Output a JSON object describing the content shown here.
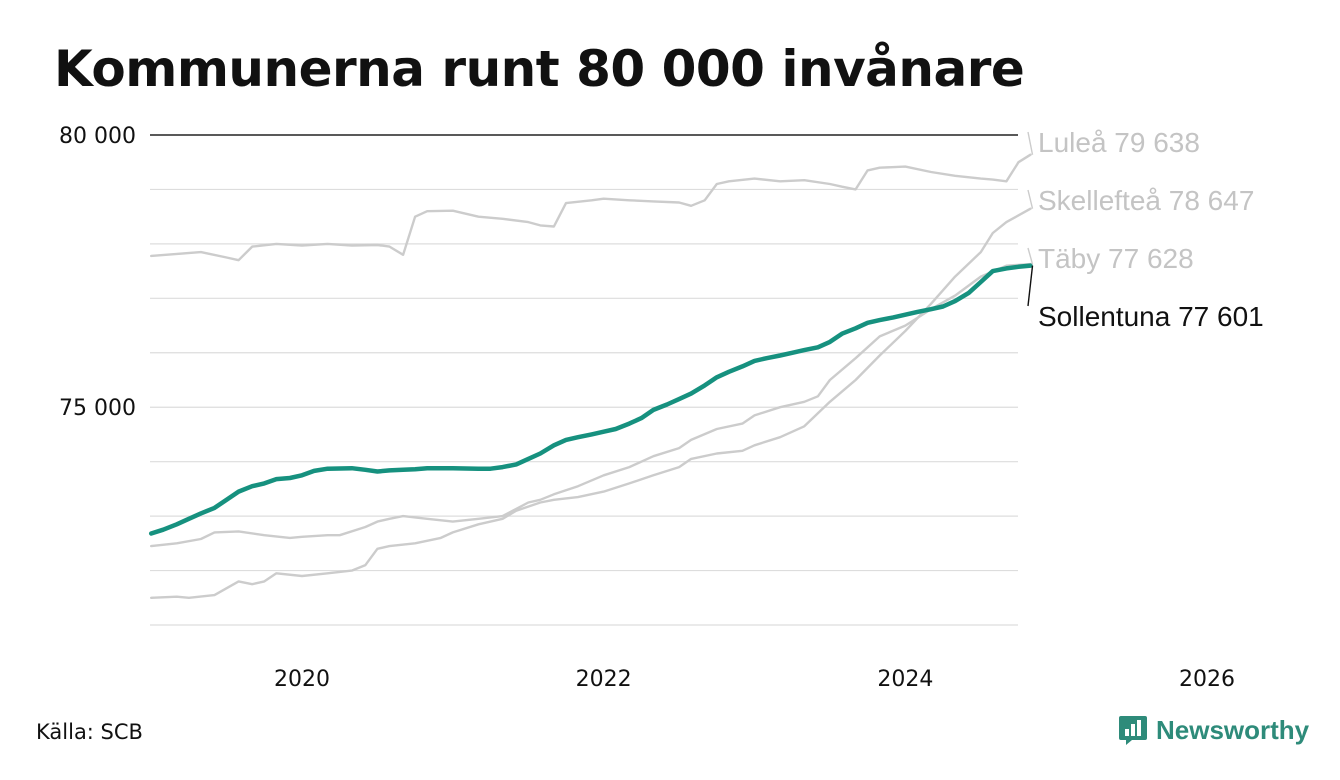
{
  "title": "Kommunerna runt 80 000 invånare",
  "source": "Källa: SCB",
  "brand": "Newsworthy",
  "colors": {
    "highlight": "#16917f",
    "muted": "#cccccc",
    "muted_label": "#c4c4c4",
    "brand": "#2e8b7a"
  },
  "chart_data": {
    "type": "line",
    "title": "Kommunerna runt 80 000 invånare",
    "y_tick_labels": [
      "80 000",
      "75 000"
    ],
    "x_tick_labels": [
      "2020",
      "2022",
      "2024",
      "2026"
    ],
    "ylim": [
      71000,
      80000
    ],
    "xlim": [
      2019.0,
      2026.0
    ],
    "grid": true,
    "series": [
      {
        "name": "Luleå",
        "label": "Luleå 79 638",
        "highlight": false,
        "points": [
          [
            2019.0,
            77780
          ],
          [
            2019.33,
            77850
          ],
          [
            2019.5,
            77750
          ],
          [
            2019.58,
            77700
          ],
          [
            2019.67,
            77950
          ],
          [
            2019.83,
            78000
          ],
          [
            2020.0,
            77970
          ],
          [
            2020.17,
            78000
          ],
          [
            2020.33,
            77970
          ],
          [
            2020.5,
            77980
          ],
          [
            2020.58,
            77950
          ],
          [
            2020.67,
            77800
          ],
          [
            2020.75,
            78500
          ],
          [
            2020.83,
            78600
          ],
          [
            2021.0,
            78610
          ],
          [
            2021.17,
            78500
          ],
          [
            2021.33,
            78460
          ],
          [
            2021.5,
            78400
          ],
          [
            2021.58,
            78340
          ],
          [
            2021.67,
            78320
          ],
          [
            2021.75,
            78750
          ],
          [
            2021.92,
            78800
          ],
          [
            2022.0,
            78830
          ],
          [
            2022.17,
            78800
          ],
          [
            2022.33,
            78780
          ],
          [
            2022.5,
            78760
          ],
          [
            2022.58,
            78700
          ],
          [
            2022.67,
            78800
          ],
          [
            2022.75,
            79100
          ],
          [
            2022.83,
            79150
          ],
          [
            2023.0,
            79200
          ],
          [
            2023.17,
            79150
          ],
          [
            2023.33,
            79170
          ],
          [
            2023.5,
            79100
          ],
          [
            2023.58,
            79050
          ],
          [
            2023.67,
            79000
          ],
          [
            2023.75,
            79350
          ],
          [
            2023.83,
            79400
          ],
          [
            2024.0,
            79420
          ],
          [
            2024.17,
            79320
          ],
          [
            2024.33,
            79250
          ],
          [
            2024.5,
            79200
          ],
          [
            2024.58,
            79180
          ],
          [
            2024.67,
            79150
          ],
          [
            2024.75,
            79500
          ],
          [
            2024.83,
            79638
          ]
        ]
      },
      {
        "name": "Skellefteå",
        "label": "Skellefteå 78 647",
        "highlight": false,
        "points": [
          [
            2019.0,
            71500
          ],
          [
            2019.17,
            71520
          ],
          [
            2019.25,
            71500
          ],
          [
            2019.42,
            71550
          ],
          [
            2019.58,
            71800
          ],
          [
            2019.67,
            71750
          ],
          [
            2019.75,
            71800
          ],
          [
            2019.83,
            71950
          ],
          [
            2020.0,
            71900
          ],
          [
            2020.17,
            71950
          ],
          [
            2020.33,
            72000
          ],
          [
            2020.42,
            72100
          ],
          [
            2020.5,
            72400
          ],
          [
            2020.58,
            72450
          ],
          [
            2020.75,
            72500
          ],
          [
            2020.92,
            72600
          ],
          [
            2021.0,
            72700
          ],
          [
            2021.17,
            72850
          ],
          [
            2021.33,
            72950
          ],
          [
            2021.42,
            73100
          ],
          [
            2021.58,
            73250
          ],
          [
            2021.67,
            73300
          ],
          [
            2021.83,
            73350
          ],
          [
            2022.0,
            73450
          ],
          [
            2022.17,
            73600
          ],
          [
            2022.33,
            73750
          ],
          [
            2022.5,
            73900
          ],
          [
            2022.58,
            74050
          ],
          [
            2022.75,
            74150
          ],
          [
            2022.92,
            74200
          ],
          [
            2023.0,
            74300
          ],
          [
            2023.17,
            74450
          ],
          [
            2023.33,
            74650
          ],
          [
            2023.5,
            75100
          ],
          [
            2023.67,
            75500
          ],
          [
            2023.83,
            75950
          ],
          [
            2024.0,
            76400
          ],
          [
            2024.17,
            76900
          ],
          [
            2024.33,
            77400
          ],
          [
            2024.5,
            77850
          ],
          [
            2024.58,
            78200
          ],
          [
            2024.67,
            78400
          ],
          [
            2024.83,
            78647
          ]
        ]
      },
      {
        "name": "Täby",
        "label": "Täby 77 628",
        "highlight": false,
        "points": [
          [
            2019.0,
            72450
          ],
          [
            2019.17,
            72500
          ],
          [
            2019.33,
            72580
          ],
          [
            2019.42,
            72700
          ],
          [
            2019.58,
            72720
          ],
          [
            2019.75,
            72650
          ],
          [
            2019.92,
            72600
          ],
          [
            2020.0,
            72620
          ],
          [
            2020.17,
            72650
          ],
          [
            2020.25,
            72650
          ],
          [
            2020.42,
            72800
          ],
          [
            2020.5,
            72900
          ],
          [
            2020.58,
            72950
          ],
          [
            2020.67,
            73000
          ],
          [
            2020.83,
            72950
          ],
          [
            2021.0,
            72900
          ],
          [
            2021.17,
            72950
          ],
          [
            2021.33,
            73000
          ],
          [
            2021.5,
            73250
          ],
          [
            2021.58,
            73300
          ],
          [
            2021.67,
            73400
          ],
          [
            2021.83,
            73550
          ],
          [
            2022.0,
            73750
          ],
          [
            2022.17,
            73900
          ],
          [
            2022.33,
            74100
          ],
          [
            2022.5,
            74250
          ],
          [
            2022.58,
            74400
          ],
          [
            2022.75,
            74600
          ],
          [
            2022.92,
            74700
          ],
          [
            2023.0,
            74850
          ],
          [
            2023.17,
            75000
          ],
          [
            2023.33,
            75100
          ],
          [
            2023.42,
            75200
          ],
          [
            2023.5,
            75500
          ],
          [
            2023.67,
            75900
          ],
          [
            2023.83,
            76300
          ],
          [
            2024.0,
            76500
          ],
          [
            2024.17,
            76800
          ],
          [
            2024.33,
            77050
          ],
          [
            2024.5,
            77400
          ],
          [
            2024.67,
            77600
          ],
          [
            2024.83,
            77628
          ]
        ]
      },
      {
        "name": "Sollentuna",
        "label": "Sollentuna 77 601",
        "highlight": true,
        "points": [
          [
            2019.0,
            72680
          ],
          [
            2019.08,
            72750
          ],
          [
            2019.17,
            72850
          ],
          [
            2019.25,
            72950
          ],
          [
            2019.33,
            73050
          ],
          [
            2019.42,
            73150
          ],
          [
            2019.5,
            73300
          ],
          [
            2019.58,
            73450
          ],
          [
            2019.67,
            73550
          ],
          [
            2019.75,
            73600
          ],
          [
            2019.83,
            73680
          ],
          [
            2019.92,
            73700
          ],
          [
            2020.0,
            73750
          ],
          [
            2020.08,
            73830
          ],
          [
            2020.17,
            73870
          ],
          [
            2020.33,
            73880
          ],
          [
            2020.42,
            73850
          ],
          [
            2020.5,
            73820
          ],
          [
            2020.58,
            73840
          ],
          [
            2020.67,
            73850
          ],
          [
            2020.75,
            73860
          ],
          [
            2020.83,
            73880
          ],
          [
            2021.0,
            73880
          ],
          [
            2021.17,
            73870
          ],
          [
            2021.25,
            73870
          ],
          [
            2021.33,
            73900
          ],
          [
            2021.42,
            73950
          ],
          [
            2021.5,
            74050
          ],
          [
            2021.58,
            74150
          ],
          [
            2021.67,
            74300
          ],
          [
            2021.75,
            74400
          ],
          [
            2021.83,
            74450
          ],
          [
            2021.92,
            74500
          ],
          [
            2022.0,
            74550
          ],
          [
            2022.08,
            74600
          ],
          [
            2022.17,
            74700
          ],
          [
            2022.25,
            74800
          ],
          [
            2022.33,
            74950
          ],
          [
            2022.42,
            75050
          ],
          [
            2022.5,
            75150
          ],
          [
            2022.58,
            75250
          ],
          [
            2022.67,
            75400
          ],
          [
            2022.75,
            75550
          ],
          [
            2022.83,
            75650
          ],
          [
            2022.92,
            75750
          ],
          [
            2023.0,
            75850
          ],
          [
            2023.08,
            75900
          ],
          [
            2023.17,
            75950
          ],
          [
            2023.25,
            76000
          ],
          [
            2023.33,
            76050
          ],
          [
            2023.42,
            76100
          ],
          [
            2023.5,
            76200
          ],
          [
            2023.58,
            76350
          ],
          [
            2023.67,
            76450
          ],
          [
            2023.75,
            76550
          ],
          [
            2023.83,
            76600
          ],
          [
            2023.92,
            76650
          ],
          [
            2024.0,
            76700
          ],
          [
            2024.08,
            76750
          ],
          [
            2024.17,
            76800
          ],
          [
            2024.25,
            76850
          ],
          [
            2024.33,
            76950
          ],
          [
            2024.42,
            77100
          ],
          [
            2024.5,
            77300
          ],
          [
            2024.58,
            77500
          ],
          [
            2024.67,
            77550
          ],
          [
            2024.75,
            77580
          ],
          [
            2024.83,
            77601
          ]
        ]
      }
    ]
  }
}
